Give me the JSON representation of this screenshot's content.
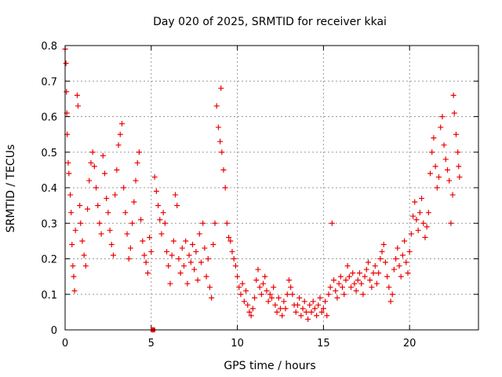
{
  "chart_data": {
    "type": "scatter",
    "title": "Day 020 of 2025, SRMTID for receiver kkai",
    "xlabel": "GPS time / hours",
    "ylabel": "SRMTID / TECUs",
    "xlim": [
      0,
      24
    ],
    "ylim": [
      0,
      0.8
    ],
    "xticks": [
      0,
      5,
      10,
      15,
      20
    ],
    "xtick_labels": [
      "0",
      "5",
      "10",
      "15",
      "20"
    ],
    "yticks": [
      0,
      0.1,
      0.2,
      0.3,
      0.4,
      0.5,
      0.6,
      0.7,
      0.8
    ],
    "ytick_labels": [
      "0",
      "0.1",
      "0.2",
      "0.3",
      "0.4",
      "0.5",
      "0.6",
      "0.7",
      "0.8"
    ],
    "grid": true,
    "marker": "plus",
    "marker_color": "#ee0000",
    "series": [
      {
        "name": "SRMTID",
        "points": [
          [
            0.0,
            0.79
          ],
          [
            0.05,
            0.75
          ],
          [
            0.08,
            0.67
          ],
          [
            0.1,
            0.61
          ],
          [
            0.12,
            0.55
          ],
          [
            0.18,
            0.47
          ],
          [
            0.22,
            0.44
          ],
          [
            0.3,
            0.38
          ],
          [
            0.35,
            0.33
          ],
          [
            0.4,
            0.24
          ],
          [
            0.45,
            0.18
          ],
          [
            0.5,
            0.15
          ],
          [
            0.55,
            0.11
          ],
          [
            0.6,
            0.28
          ],
          [
            0.7,
            0.66
          ],
          [
            0.75,
            0.63
          ],
          [
            0.85,
            0.35
          ],
          [
            0.9,
            0.3
          ],
          [
            1.0,
            0.25
          ],
          [
            1.1,
            0.21
          ],
          [
            1.2,
            0.18
          ],
          [
            1.3,
            0.34
          ],
          [
            1.4,
            0.42
          ],
          [
            1.5,
            0.47
          ],
          [
            1.6,
            0.5
          ],
          [
            1.7,
            0.46
          ],
          [
            1.8,
            0.4
          ],
          [
            1.9,
            0.35
          ],
          [
            2.0,
            0.3
          ],
          [
            2.1,
            0.27
          ],
          [
            2.2,
            0.49
          ],
          [
            2.3,
            0.44
          ],
          [
            2.4,
            0.37
          ],
          [
            2.5,
            0.33
          ],
          [
            2.6,
            0.28
          ],
          [
            2.7,
            0.24
          ],
          [
            2.8,
            0.21
          ],
          [
            2.9,
            0.38
          ],
          [
            3.0,
            0.45
          ],
          [
            3.1,
            0.52
          ],
          [
            3.2,
            0.55
          ],
          [
            3.3,
            0.58
          ],
          [
            3.4,
            0.4
          ],
          [
            3.5,
            0.33
          ],
          [
            3.6,
            0.27
          ],
          [
            3.7,
            0.2
          ],
          [
            3.8,
            0.23
          ],
          [
            3.9,
            0.3
          ],
          [
            4.0,
            0.36
          ],
          [
            4.1,
            0.42
          ],
          [
            4.2,
            0.47
          ],
          [
            4.3,
            0.5
          ],
          [
            4.4,
            0.31
          ],
          [
            4.5,
            0.25
          ],
          [
            4.6,
            0.21
          ],
          [
            4.7,
            0.19
          ],
          [
            4.8,
            0.16
          ],
          [
            4.9,
            0.26
          ],
          [
            5.0,
            0.22
          ],
          [
            5.1,
            0.0
          ],
          [
            5.2,
            0.43
          ],
          [
            5.3,
            0.39
          ],
          [
            5.4,
            0.35
          ],
          [
            5.5,
            0.31
          ],
          [
            5.6,
            0.27
          ],
          [
            5.7,
            0.33
          ],
          [
            5.8,
            0.3
          ],
          [
            5.9,
            0.22
          ],
          [
            6.0,
            0.18
          ],
          [
            6.1,
            0.13
          ],
          [
            6.2,
            0.21
          ],
          [
            6.3,
            0.25
          ],
          [
            6.4,
            0.38
          ],
          [
            6.5,
            0.35
          ],
          [
            6.6,
            0.2
          ],
          [
            6.7,
            0.16
          ],
          [
            6.8,
            0.23
          ],
          [
            6.9,
            0.18
          ],
          [
            7.0,
            0.25
          ],
          [
            7.1,
            0.13
          ],
          [
            7.2,
            0.21
          ],
          [
            7.3,
            0.19
          ],
          [
            7.4,
            0.24
          ],
          [
            7.5,
            0.17
          ],
          [
            7.6,
            0.22
          ],
          [
            7.7,
            0.14
          ],
          [
            7.8,
            0.27
          ],
          [
            7.9,
            0.19
          ],
          [
            8.0,
            0.3
          ],
          [
            8.1,
            0.23
          ],
          [
            8.2,
            0.15
          ],
          [
            8.3,
            0.2
          ],
          [
            8.4,
            0.12
          ],
          [
            8.5,
            0.09
          ],
          [
            8.6,
            0.24
          ],
          [
            8.7,
            0.3
          ],
          [
            8.8,
            0.63
          ],
          [
            8.9,
            0.57
          ],
          [
            9.0,
            0.53
          ],
          [
            9.05,
            0.68
          ],
          [
            9.1,
            0.5
          ],
          [
            9.2,
            0.45
          ],
          [
            9.3,
            0.4
          ],
          [
            9.4,
            0.3
          ],
          [
            9.5,
            0.26
          ],
          [
            9.6,
            0.25
          ],
          [
            9.7,
            0.22
          ],
          [
            9.8,
            0.2
          ],
          [
            9.9,
            0.18
          ],
          [
            10.0,
            0.15
          ],
          [
            10.1,
            0.12
          ],
          [
            10.2,
            0.1
          ],
          [
            10.3,
            0.13
          ],
          [
            10.4,
            0.08
          ],
          [
            10.5,
            0.11
          ],
          [
            10.6,
            0.07
          ],
          [
            10.7,
            0.05
          ],
          [
            10.8,
            0.04
          ],
          [
            10.9,
            0.06
          ],
          [
            11.0,
            0.09
          ],
          [
            11.1,
            0.14
          ],
          [
            11.2,
            0.17
          ],
          [
            11.3,
            0.12
          ],
          [
            11.4,
            0.1
          ],
          [
            11.5,
            0.13
          ],
          [
            11.6,
            0.15
          ],
          [
            11.7,
            0.11
          ],
          [
            11.8,
            0.08
          ],
          [
            11.9,
            0.1
          ],
          [
            12.0,
            0.09
          ],
          [
            12.1,
            0.12
          ],
          [
            12.2,
            0.07
          ],
          [
            12.3,
            0.05
          ],
          [
            12.4,
            0.09
          ],
          [
            12.5,
            0.06
          ],
          [
            12.6,
            0.04
          ],
          [
            12.7,
            0.08
          ],
          [
            12.8,
            0.06
          ],
          [
            12.9,
            0.1
          ],
          [
            13.0,
            0.14
          ],
          [
            13.1,
            0.12
          ],
          [
            13.2,
            0.1
          ],
          [
            13.3,
            0.07
          ],
          [
            13.4,
            0.05
          ],
          [
            13.5,
            0.07
          ],
          [
            13.6,
            0.09
          ],
          [
            13.7,
            0.04
          ],
          [
            13.8,
            0.06
          ],
          [
            13.9,
            0.08
          ],
          [
            14.0,
            0.05
          ],
          [
            14.1,
            0.03
          ],
          [
            14.2,
            0.07
          ],
          [
            14.3,
            0.05
          ],
          [
            14.4,
            0.08
          ],
          [
            14.5,
            0.06
          ],
          [
            14.6,
            0.04
          ],
          [
            14.7,
            0.07
          ],
          [
            14.8,
            0.09
          ],
          [
            14.9,
            0.05
          ],
          [
            15.0,
            0.06
          ],
          [
            15.1,
            0.08
          ],
          [
            15.2,
            0.04
          ],
          [
            15.3,
            0.1
          ],
          [
            15.4,
            0.12
          ],
          [
            15.5,
            0.3
          ],
          [
            15.6,
            0.14
          ],
          [
            15.7,
            0.11
          ],
          [
            15.8,
            0.09
          ],
          [
            15.9,
            0.13
          ],
          [
            16.0,
            0.15
          ],
          [
            16.1,
            0.12
          ],
          [
            16.2,
            0.1
          ],
          [
            16.3,
            0.14
          ],
          [
            16.4,
            0.18
          ],
          [
            16.5,
            0.15
          ],
          [
            16.6,
            0.12
          ],
          [
            16.7,
            0.16
          ],
          [
            16.8,
            0.13
          ],
          [
            16.9,
            0.11
          ],
          [
            17.0,
            0.14
          ],
          [
            17.1,
            0.16
          ],
          [
            17.2,
            0.13
          ],
          [
            17.3,
            0.1
          ],
          [
            17.4,
            0.15
          ],
          [
            17.5,
            0.17
          ],
          [
            17.6,
            0.19
          ],
          [
            17.7,
            0.14
          ],
          [
            17.8,
            0.12
          ],
          [
            17.9,
            0.16
          ],
          [
            18.0,
            0.18
          ],
          [
            18.1,
            0.13
          ],
          [
            18.2,
            0.16
          ],
          [
            18.3,
            0.2
          ],
          [
            18.4,
            0.22
          ],
          [
            18.5,
            0.24
          ],
          [
            18.6,
            0.19
          ],
          [
            18.7,
            0.15
          ],
          [
            18.8,
            0.12
          ],
          [
            18.9,
            0.08
          ],
          [
            19.0,
            0.1
          ],
          [
            19.1,
            0.17
          ],
          [
            19.2,
            0.2
          ],
          [
            19.3,
            0.23
          ],
          [
            19.4,
            0.18
          ],
          [
            19.5,
            0.15
          ],
          [
            19.6,
            0.21
          ],
          [
            19.7,
            0.25
          ],
          [
            19.8,
            0.19
          ],
          [
            19.9,
            0.16
          ],
          [
            20.0,
            0.22
          ],
          [
            20.1,
            0.27
          ],
          [
            20.2,
            0.32
          ],
          [
            20.3,
            0.36
          ],
          [
            20.4,
            0.31
          ],
          [
            20.5,
            0.28
          ],
          [
            20.6,
            0.33
          ],
          [
            20.7,
            0.37
          ],
          [
            20.8,
            0.3
          ],
          [
            20.9,
            0.26
          ],
          [
            21.0,
            0.29
          ],
          [
            21.1,
            0.33
          ],
          [
            21.2,
            0.44
          ],
          [
            21.3,
            0.5
          ],
          [
            21.4,
            0.54
          ],
          [
            21.5,
            0.46
          ],
          [
            21.6,
            0.4
          ],
          [
            21.7,
            0.43
          ],
          [
            21.8,
            0.57
          ],
          [
            21.9,
            0.6
          ],
          [
            22.0,
            0.52
          ],
          [
            22.1,
            0.48
          ],
          [
            22.2,
            0.45
          ],
          [
            22.3,
            0.42
          ],
          [
            22.4,
            0.3
          ],
          [
            22.5,
            0.38
          ],
          [
            22.55,
            0.66
          ],
          [
            22.6,
            0.61
          ],
          [
            22.7,
            0.55
          ],
          [
            22.8,
            0.5
          ],
          [
            22.85,
            0.46
          ],
          [
            22.9,
            0.43
          ]
        ]
      }
    ],
    "marker_series": [
      {
        "name": "outlier",
        "points": [
          [
            5.1,
            0.0
          ]
        ]
      }
    ]
  }
}
